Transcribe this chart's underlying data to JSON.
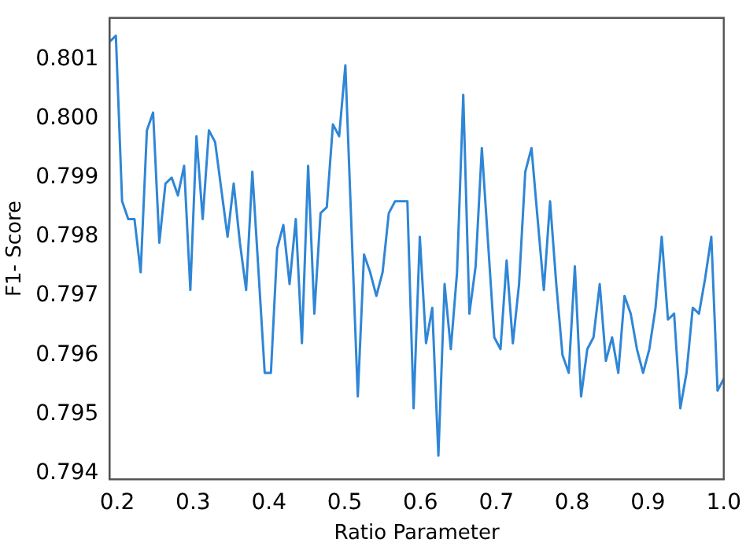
{
  "chart_data": {
    "type": "line",
    "xlabel": "Ratio Parameter",
    "ylabel": "F1- Score",
    "x": [
      0.19,
      0.1982,
      0.2064,
      0.2145,
      0.2227,
      0.2309,
      0.2391,
      0.2473,
      0.2555,
      0.2636,
      0.2718,
      0.28,
      0.2882,
      0.2964,
      0.3045,
      0.3127,
      0.3209,
      0.3291,
      0.3373,
      0.3455,
      0.3536,
      0.3618,
      0.37,
      0.3782,
      0.3864,
      0.3945,
      0.4027,
      0.4109,
      0.4191,
      0.4273,
      0.4355,
      0.4436,
      0.4518,
      0.46,
      0.4682,
      0.4764,
      0.4845,
      0.4927,
      0.5009,
      0.5091,
      0.5173,
      0.5255,
      0.5336,
      0.5418,
      0.55,
      0.5582,
      0.5664,
      0.5745,
      0.5827,
      0.5909,
      0.5991,
      0.6073,
      0.6155,
      0.6236,
      0.6318,
      0.64,
      0.6482,
      0.6564,
      0.6645,
      0.6727,
      0.6809,
      0.6891,
      0.6973,
      0.7055,
      0.7136,
      0.7218,
      0.73,
      0.7382,
      0.7464,
      0.7545,
      0.7627,
      0.7709,
      0.7791,
      0.7873,
      0.7955,
      0.8036,
      0.8118,
      0.82,
      0.8282,
      0.8364,
      0.8445,
      0.8527,
      0.8609,
      0.8691,
      0.8773,
      0.8855,
      0.8936,
      0.9018,
      0.91,
      0.9182,
      0.9264,
      0.9345,
      0.9427,
      0.9509,
      0.9591,
      0.9673,
      0.9755,
      0.9836,
      0.9918,
      1.0
    ],
    "series": [
      {
        "color": "#2f86d6",
        "values": [
          0.8013,
          0.8014,
          0.7986,
          0.7983,
          0.7983,
          0.7974,
          0.7998,
          0.8001,
          0.7979,
          0.7989,
          0.799,
          0.7987,
          0.7992,
          0.7971,
          0.7997,
          0.7983,
          0.7998,
          0.7996,
          0.7988,
          0.798,
          0.7989,
          0.7979,
          0.7971,
          0.7991,
          0.7974,
          0.7957,
          0.7957,
          0.7978,
          0.7982,
          0.7972,
          0.7983,
          0.7962,
          0.7992,
          0.7967,
          0.7984,
          0.7985,
          0.7999,
          0.7997,
          0.8009,
          0.7981,
          0.7953,
          0.7977,
          0.7974,
          0.797,
          0.7974,
          0.7984,
          0.7986,
          0.7986,
          0.7986,
          0.7951,
          0.798,
          0.7962,
          0.7968,
          0.7943,
          0.7972,
          0.7961,
          0.7974,
          0.8004,
          0.7967,
          0.7975,
          0.7995,
          0.7979,
          0.7963,
          0.7961,
          0.7976,
          0.7962,
          0.7972,
          0.7991,
          0.7995,
          0.7983,
          0.7971,
          0.7986,
          0.7972,
          0.796,
          0.7957,
          0.7975,
          0.7953,
          0.7961,
          0.7963,
          0.7972,
          0.7959,
          0.7963,
          0.7957,
          0.797,
          0.7967,
          0.7961,
          0.7957,
          0.7961,
          0.7968,
          0.798,
          0.7966,
          0.7967,
          0.7951,
          0.7957,
          0.7968,
          0.7967,
          0.7973,
          0.798,
          0.7954,
          0.7956
        ]
      }
    ],
    "xlim": [
      0.19,
      1.0
    ],
    "xticks": [
      0.2,
      0.3,
      0.4,
      0.5,
      0.6,
      0.7,
      0.8,
      0.9,
      {
        "value": 1.0,
        "label": "1.0"
      }
    ],
    "ylim": [
      0.7939,
      0.8017
    ],
    "yticks": [
      0.794,
      0.795,
      0.796,
      0.797,
      0.798,
      0.799,
      {
        "value": 0.8,
        "label": "0.800"
      },
      0.801
    ],
    "grid": false,
    "legend": false,
    "marker": "none",
    "line_style": "solid"
  }
}
